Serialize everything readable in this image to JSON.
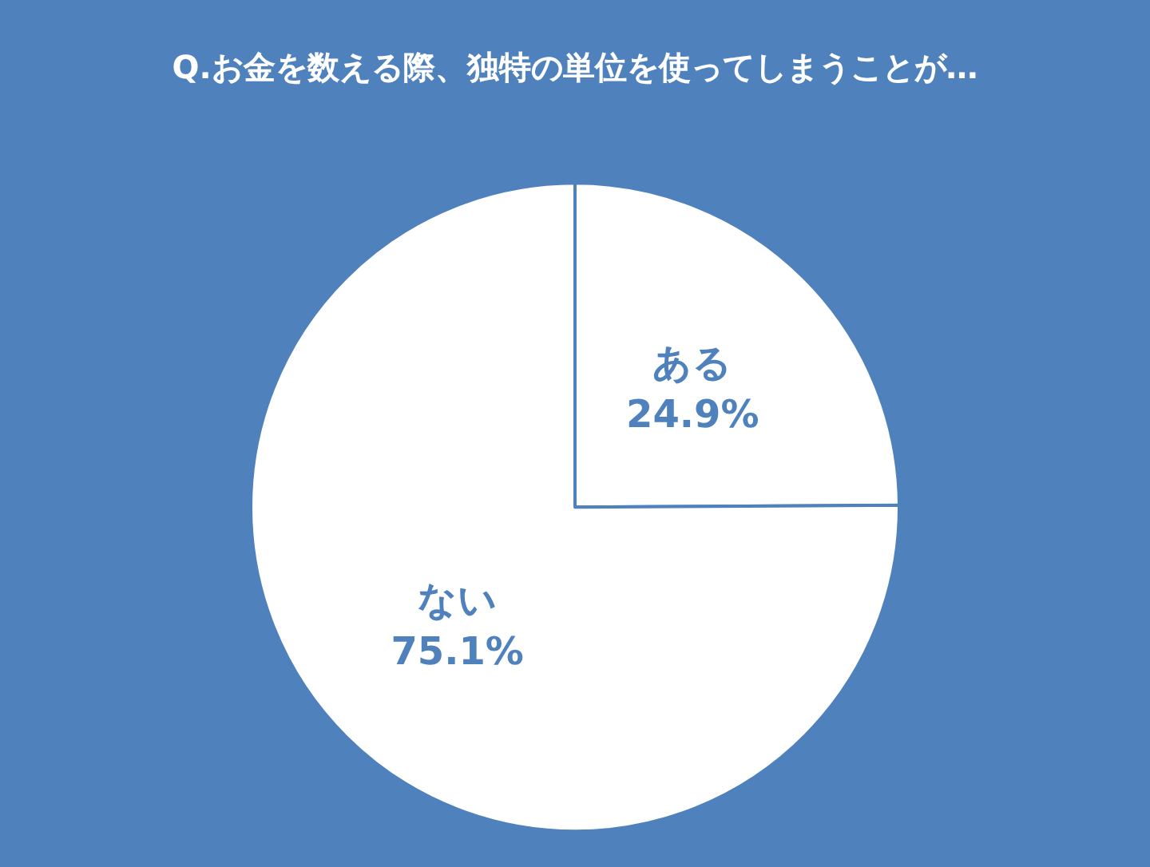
{
  "chart_data": {
    "type": "pie",
    "title": "Q.お金を数える際、独特の単位を使ってしまうことが…",
    "categories": [
      "ある",
      "ない"
    ],
    "values": [
      24.9,
      75.1
    ],
    "colors": [
      "#ffffff",
      "#ffffff"
    ],
    "value_labels": [
      "24.9%",
      "75.1%"
    ]
  }
}
